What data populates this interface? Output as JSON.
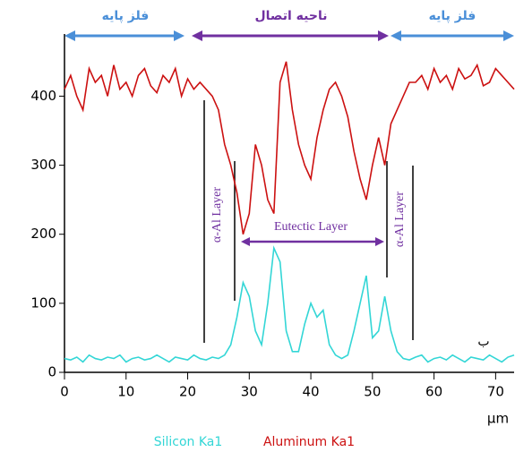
{
  "chart_data": {
    "type": "line",
    "x_label": "µm",
    "x": [
      0,
      1,
      2,
      3,
      4,
      5,
      6,
      7,
      8,
      9,
      10,
      11,
      12,
      13,
      14,
      15,
      16,
      17,
      18,
      19,
      20,
      21,
      22,
      23,
      24,
      25,
      26,
      27,
      28,
      29,
      30,
      31,
      32,
      33,
      34,
      35,
      36,
      37,
      38,
      39,
      40,
      41,
      42,
      43,
      44,
      45,
      46,
      47,
      48,
      49,
      50,
      51,
      52,
      53,
      54,
      55,
      56,
      57,
      58,
      59,
      60,
      61,
      62,
      63,
      64,
      65,
      66,
      67,
      68,
      69,
      70,
      71,
      72,
      73
    ],
    "series": [
      {
        "name": "Silicon Ka1",
        "color": "#33d6d6",
        "values": [
          20,
          18,
          22,
          15,
          25,
          20,
          18,
          22,
          20,
          25,
          15,
          20,
          22,
          18,
          20,
          25,
          20,
          15,
          22,
          20,
          18,
          25,
          20,
          18,
          22,
          20,
          25,
          40,
          80,
          130,
          110,
          60,
          40,
          100,
          180,
          160,
          60,
          30,
          30,
          70,
          100,
          80,
          90,
          40,
          25,
          20,
          25,
          60,
          100,
          140,
          50,
          60,
          110,
          60,
          30,
          20,
          18,
          22,
          25,
          15,
          20,
          22,
          18,
          25,
          20,
          15,
          22,
          20,
          18,
          25,
          20,
          15,
          22,
          25
        ]
      },
      {
        "name": "Aluminum Ka1",
        "color": "#cc1111",
        "values": [
          410,
          430,
          400,
          380,
          440,
          420,
          430,
          400,
          445,
          410,
          420,
          400,
          430,
          440,
          415,
          405,
          430,
          420,
          440,
          400,
          425,
          410,
          420,
          410,
          400,
          380,
          330,
          300,
          260,
          200,
          230,
          330,
          300,
          250,
          230,
          420,
          450,
          380,
          330,
          300,
          280,
          340,
          380,
          410,
          420,
          400,
          370,
          320,
          280,
          250,
          300,
          340,
          300,
          360,
          380,
          400,
          420,
          420,
          430,
          410,
          440,
          420,
          430,
          410,
          440,
          425,
          430,
          445,
          415,
          420,
          440,
          430,
          420,
          410
        ]
      }
    ],
    "xlim": [
      0,
      73
    ],
    "xticks": [
      0,
      10,
      20,
      30,
      40,
      50,
      60,
      70
    ],
    "ylim": [
      0,
      490
    ],
    "yticks": [
      0,
      100,
      200,
      300,
      400
    ],
    "annotations": [
      "فلز پایه",
      "ناحیه اتصال",
      "فلز پایه",
      "α-Al Layer",
      "Eutectic Layer",
      "α-Al Layer",
      "ب"
    ]
  }
}
